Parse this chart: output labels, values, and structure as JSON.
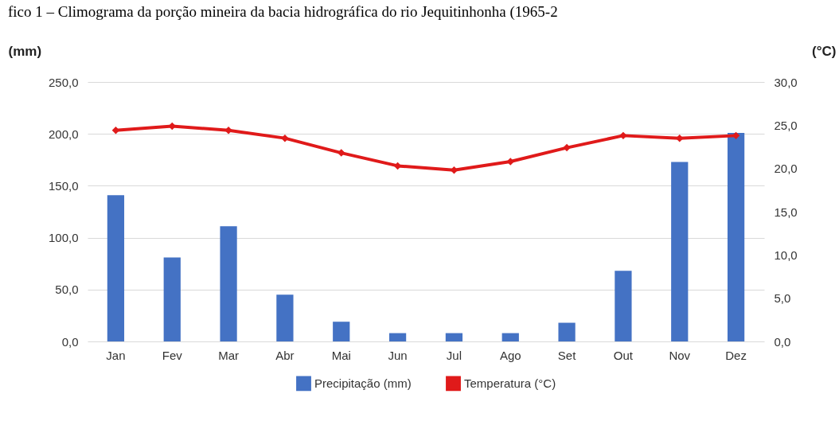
{
  "chart_data": {
    "type": "bar",
    "title": "fico 1 – Climograma da porção mineira da bacia hidrográfica do rio Jequitinhonha (1965-2",
    "ylabel": "(mm)",
    "y2label": "(°C)",
    "categories": [
      "Jan",
      "Fev",
      "Mar",
      "Abr",
      "Mai",
      "Jun",
      "Jul",
      "Ago",
      "Set",
      "Out",
      "Nov",
      "Dez"
    ],
    "series": [
      {
        "name": "Precipitação (mm)",
        "color": "#4472c4",
        "values": [
          141,
          81,
          111,
          45,
          19,
          8,
          8,
          8,
          18,
          68,
          173,
          201
        ]
      },
      {
        "name": "Temperatura (°C)",
        "type": "line",
        "axis": "y2",
        "color": "#e01a1a",
        "marker": "diamond",
        "values": [
          24.4,
          24.9,
          24.4,
          23.5,
          21.8,
          20.3,
          19.8,
          20.8,
          22.4,
          23.8,
          23.5,
          23.8
        ]
      }
    ],
    "ylim": [
      0,
      250
    ],
    "yticks": [
      {
        "value": 0,
        "label": "0,0"
      },
      {
        "value": 50,
        "label": "50,0"
      },
      {
        "value": 100,
        "label": "100,0"
      },
      {
        "value": 150,
        "label": "150,0"
      },
      {
        "value": 200,
        "label": "200,0"
      },
      {
        "value": 250,
        "label": "250,0"
      }
    ],
    "y2lim": [
      0,
      30
    ],
    "y2ticks": [
      {
        "value": 0,
        "label": "0,0"
      },
      {
        "value": 5,
        "label": "5,0"
      },
      {
        "value": 10,
        "label": "10,0"
      },
      {
        "value": 15,
        "label": "15,0"
      },
      {
        "value": 20,
        "label": "20,0"
      },
      {
        "value": 25,
        "label": "25,0"
      },
      {
        "value": 30,
        "label": "30,0"
      }
    ],
    "grid": "y",
    "legend": "bottom"
  }
}
